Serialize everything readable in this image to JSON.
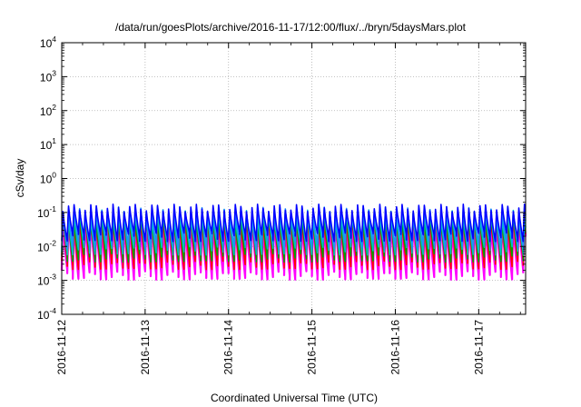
{
  "chart_data": {
    "type": "line",
    "title": "/data/run/goesPlots/archive/2016-11-17/12:00/flux/../bryn/5daysMars.plot",
    "xlabel": "Coordinated Universal Time (UTC)",
    "ylabel": "cSv/day",
    "yscale": "log",
    "ylim": [
      0.0001,
      10000
    ],
    "xlim": [
      "2016-11-12 00:00",
      "2016-11-17 13:30"
    ],
    "grid": true,
    "legend": "none",
    "x_ticks": [
      "2016-11-12",
      "2016-11-13",
      "2016-11-14",
      "2016-11-15",
      "2016-11-16",
      "2016-11-17"
    ],
    "y_ticks": [
      {
        "base": "10",
        "exp": "-4"
      },
      {
        "base": "10",
        "exp": "-3"
      },
      {
        "base": "10",
        "exp": "-2"
      },
      {
        "base": "10",
        "exp": "-1"
      },
      {
        "base": "10",
        "exp": "0"
      },
      {
        "base": "10",
        "exp": "1"
      },
      {
        "base": "10",
        "exp": "2"
      },
      {
        "base": "10",
        "exp": "3"
      },
      {
        "base": "10",
        "exp": "4"
      }
    ],
    "cycle_hours": 1.6,
    "series": [
      {
        "color": "#ff00ff",
        "peak": 0.06,
        "trough": 0.0015
      },
      {
        "color": "#ff0000",
        "peak": 0.075,
        "trough": 0.003
      },
      {
        "color": "#00a000",
        "peak": 0.085,
        "trough": 0.005
      },
      {
        "color": "#00c0c0",
        "peak": 0.1,
        "trough": 0.008
      },
      {
        "color": "#1e90ff",
        "peak": 0.12,
        "trough": 0.012
      },
      {
        "color": "#0000ff",
        "peak": 0.14,
        "trough": 0.02
      }
    ]
  }
}
